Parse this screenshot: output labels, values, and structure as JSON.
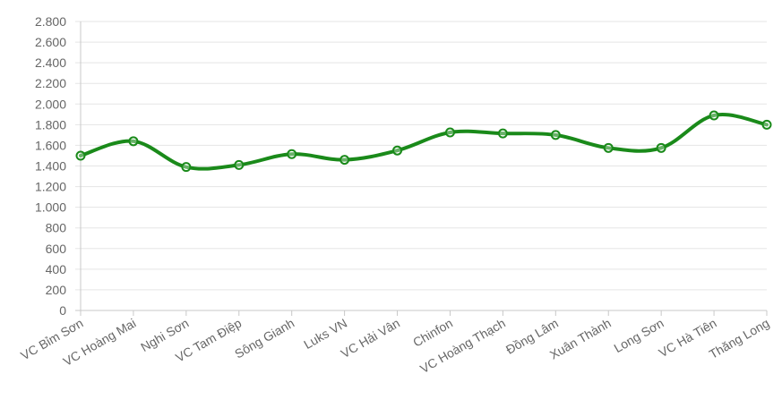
{
  "chart_data": {
    "type": "line",
    "title": "",
    "xlabel": "",
    "ylabel": "",
    "ylim": [
      0,
      2800
    ],
    "y_ticks": [
      0,
      200,
      400,
      600,
      800,
      1000,
      1200,
      1400,
      1600,
      1800,
      2000,
      2200,
      2400,
      2600,
      2800
    ],
    "y_tick_labels": [
      "0",
      "200",
      "400",
      "600",
      "800",
      "1.000",
      "1.200",
      "1.400",
      "1.600",
      "1.800",
      "2.000",
      "2.200",
      "2.400",
      "2.600",
      "2.800"
    ],
    "categories": [
      "VC Bỉm Sơn",
      "VC Hoàng Mai",
      "Nghi Sơn",
      "VC Tam Điệp",
      "Sông Gianh",
      "Luks VN",
      "VC Hải Vân",
      "Chinfon",
      "VC Hoàng Thạch",
      "Đồng Lâm",
      "Xuân Thành",
      "Long Sơn",
      "VC Hà Tiên",
      "Thăng Long"
    ],
    "series": [
      {
        "values": [
          1500,
          1640,
          1390,
          1410,
          1515,
          1460,
          1550,
          1725,
          1715,
          1700,
          1575,
          1575,
          1890,
          1800
        ],
        "color": "#1a8a1a"
      }
    ],
    "grid": true,
    "legend": "none"
  }
}
